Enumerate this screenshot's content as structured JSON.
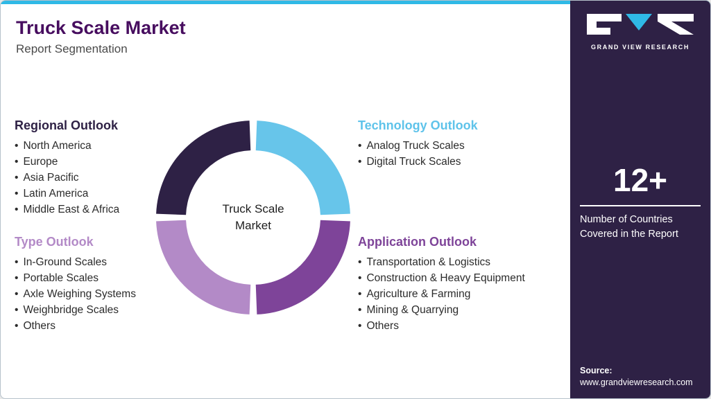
{
  "page": {
    "title": "Truck Scale Market",
    "subtitle": "Report Segmentation"
  },
  "colors": {
    "accent_cyan": "#2fb9e6",
    "dark_purple": "#2e2145",
    "light_blue": "#5ec3ea",
    "purple": "#7e4499",
    "light_purple": "#b38ac7",
    "title_plum": "#470d5f"
  },
  "regional": {
    "heading": "Regional Outlook",
    "items": [
      "North America",
      "Europe",
      "Asia Pacific",
      "Latin America",
      "Middle East & Africa"
    ]
  },
  "technology": {
    "heading": "Technology Outlook",
    "items": [
      "Analog Truck Scales",
      "Digital Truck Scales"
    ]
  },
  "type": {
    "heading": "Type Outlook",
    "items": [
      "In-Ground Scales",
      "Portable Scales",
      "Axle Weighing Systems",
      "Weighbridge Scales",
      "Others"
    ]
  },
  "application": {
    "heading": "Application Outlook",
    "items": [
      "Transportation & Logistics",
      "Construction & Heavy Equipment",
      "Agriculture & Farming",
      "Mining & Quarrying",
      "Others"
    ]
  },
  "donut": {
    "center_line1": "Truck Scale",
    "center_line2": "Market",
    "segments": [
      {
        "name": "technology",
        "color": "#67c5ea"
      },
      {
        "name": "application",
        "color": "#7e4499"
      },
      {
        "name": "type",
        "color": "#b38ac7"
      },
      {
        "name": "regional",
        "color": "#2e2145"
      }
    ]
  },
  "chart_data": {
    "type": "pie",
    "title": "Truck Scale Market",
    "labels": [
      "Technology Outlook",
      "Application Outlook",
      "Type Outlook",
      "Regional Outlook"
    ],
    "values": [
      25,
      25,
      25,
      25
    ],
    "colors": [
      "#67c5ea",
      "#7e4499",
      "#b38ac7",
      "#2e2145"
    ],
    "donut": true,
    "center_label": "Truck Scale Market"
  },
  "sidebar": {
    "logo_text": "GRAND VIEW RESEARCH",
    "stat_value": "12+",
    "stat_caption": "Number of Countries Covered in the Report",
    "source_label": "Source:",
    "source_url": "www.grandviewresearch.com"
  }
}
